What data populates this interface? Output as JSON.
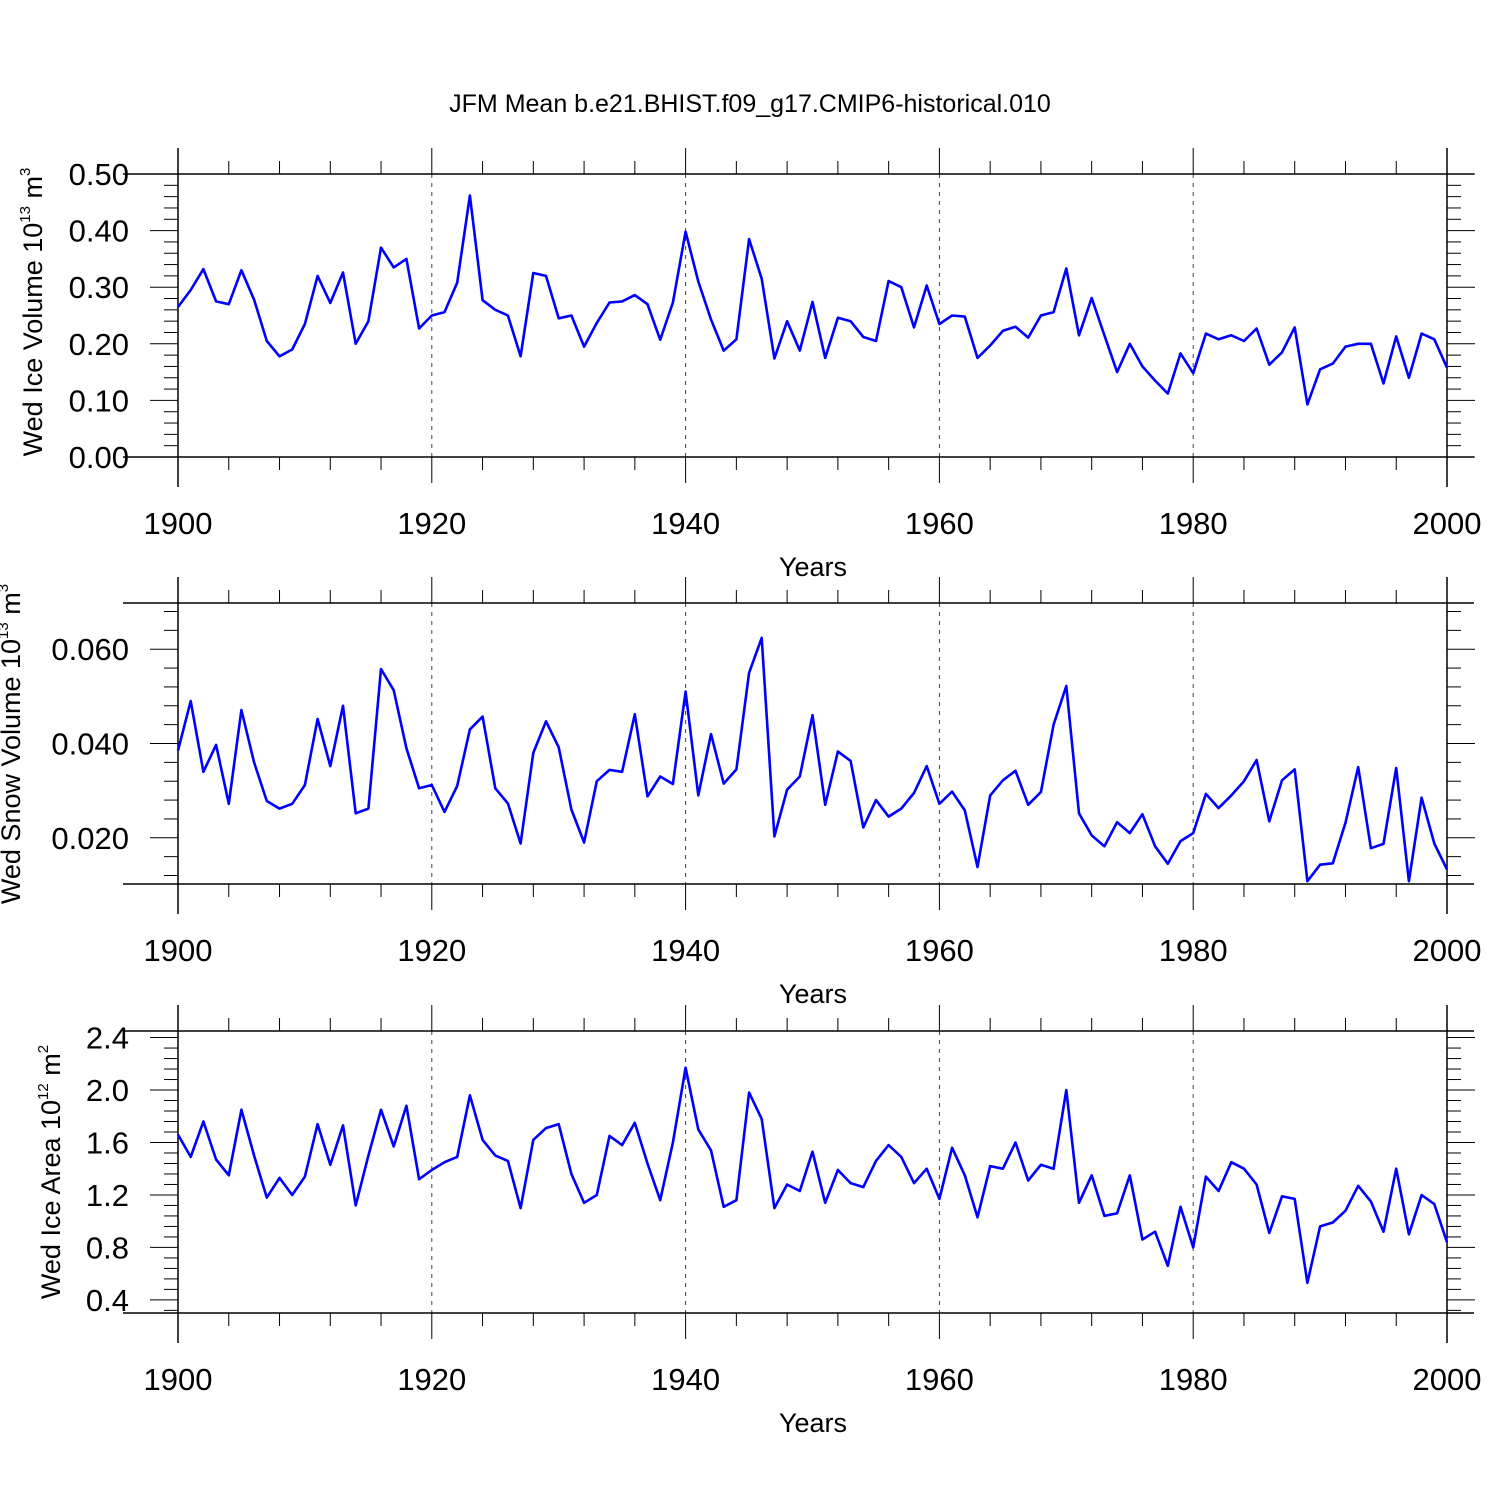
{
  "title": "JFM Mean b.e21.BHIST.f09_g17.CMIP6-historical.010",
  "chart_data": [
    {
      "type": "line",
      "xlabel": "Years",
      "ylabel": "Wed Ice Volume",
      "ylabel_unit_base": "10",
      "ylabel_unit_exp": "13",
      "ylabel_unit_rest": "m",
      "ylabel_unit_rest_exp": "3",
      "xlim": [
        1900,
        2000
      ],
      "ylim": [
        0,
        0.5
      ],
      "xticks": [
        "1900",
        "1920",
        "1940",
        "1960",
        "1980",
        "2000"
      ],
      "yticks": [
        {
          "value": 0.0,
          "label": "0.00"
        },
        {
          "value": 0.1,
          "label": "0.10"
        },
        {
          "value": 0.2,
          "label": "0.20"
        },
        {
          "value": 0.3,
          "label": "0.30"
        },
        {
          "value": 0.4,
          "label": "0.40"
        },
        {
          "value": 0.5,
          "label": "0.50"
        }
      ],
      "grid": "vertical dashed at major x ticks",
      "line_color": "#0000ff",
      "series": [
        {
          "x_start": 1900,
          "values": [
            0.265,
            0.295,
            0.332,
            0.275,
            0.27,
            0.33,
            0.278,
            0.205,
            0.178,
            0.19,
            0.235,
            0.32,
            0.272,
            0.326,
            0.2,
            0.24,
            0.37,
            0.335,
            0.35,
            0.227,
            0.25,
            0.256,
            0.308,
            0.462,
            0.277,
            0.26,
            0.25,
            0.178,
            0.325,
            0.32,
            0.245,
            0.25,
            0.195,
            0.237,
            0.273,
            0.275,
            0.286,
            0.27,
            0.207,
            0.273,
            0.398,
            0.31,
            0.243,
            0.188,
            0.208,
            0.385,
            0.315,
            0.174,
            0.24,
            0.188,
            0.274,
            0.175,
            0.246,
            0.24,
            0.212,
            0.205,
            0.311,
            0.3,
            0.229,
            0.303,
            0.235,
            0.25,
            0.248,
            0.175,
            0.197,
            0.223,
            0.23,
            0.211,
            0.25,
            0.256,
            0.333,
            0.215,
            0.281,
            0.215,
            0.15,
            0.2,
            0.16,
            0.135,
            0.112,
            0.183,
            0.148,
            0.218,
            0.208,
            0.215,
            0.205,
            0.227,
            0.163,
            0.185,
            0.229,
            0.093,
            0.155,
            0.165,
            0.195,
            0.2,
            0.2,
            0.13,
            0.213,
            0.14,
            0.218,
            0.208,
            0.158
          ]
        }
      ]
    },
    {
      "type": "line",
      "xlabel": "Years",
      "ylabel": "Wed Snow Volume",
      "ylabel_unit_base": "10",
      "ylabel_unit_exp": "13",
      "ylabel_unit_rest": "m",
      "ylabel_unit_rest_exp": "3",
      "xlim": [
        1900,
        2000
      ],
      "ylim": [
        0.0102,
        0.0698
      ],
      "xticks": [
        "1900",
        "1920",
        "1940",
        "1960",
        "1980",
        "2000"
      ],
      "yticks": [
        {
          "value": 0.02,
          "label": "0.020"
        },
        {
          "value": 0.04,
          "label": "0.040"
        },
        {
          "value": 0.06,
          "label": "0.060"
        }
      ],
      "grid": "vertical dashed at major x ticks",
      "line_color": "#0000ff",
      "series": [
        {
          "x_start": 1900,
          "values": [
            0.0385,
            0.049,
            0.034,
            0.0397,
            0.0272,
            0.0471,
            0.036,
            0.0278,
            0.0262,
            0.0272,
            0.0312,
            0.0452,
            0.0352,
            0.048,
            0.0252,
            0.0262,
            0.0558,
            0.0513,
            0.039,
            0.0305,
            0.0312,
            0.0255,
            0.031,
            0.043,
            0.0457,
            0.0305,
            0.0273,
            0.0188,
            0.038,
            0.0447,
            0.0392,
            0.026,
            0.019,
            0.032,
            0.0344,
            0.034,
            0.0462,
            0.0288,
            0.033,
            0.0314,
            0.051,
            0.029,
            0.042,
            0.0315,
            0.0345,
            0.055,
            0.0624,
            0.0203,
            0.0302,
            0.033,
            0.046,
            0.027,
            0.0383,
            0.0363,
            0.0222,
            0.028,
            0.0245,
            0.0262,
            0.0295,
            0.0352,
            0.0272,
            0.0298,
            0.0258,
            0.0138,
            0.029,
            0.0322,
            0.0342,
            0.027,
            0.0297,
            0.044,
            0.0522,
            0.0252,
            0.0205,
            0.0182,
            0.0233,
            0.021,
            0.025,
            0.0182,
            0.0145,
            0.0193,
            0.021,
            0.0293,
            0.0263,
            0.029,
            0.032,
            0.0365,
            0.0235,
            0.0322,
            0.0345,
            0.0108,
            0.0143,
            0.0146,
            0.0232,
            0.035,
            0.0178,
            0.0187,
            0.0348,
            0.0108,
            0.0285,
            0.0188,
            0.0133
          ]
        }
      ]
    },
    {
      "type": "line",
      "xlabel": "Years",
      "ylabel": "Wed Ice Area",
      "ylabel_unit_base": "10",
      "ylabel_unit_exp": "12",
      "ylabel_unit_rest": "m",
      "ylabel_unit_rest_exp": "2",
      "xlim": [
        1900,
        2000
      ],
      "ylim": [
        0.3,
        2.45
      ],
      "xticks": [
        "1900",
        "1920",
        "1940",
        "1960",
        "1980",
        "2000"
      ],
      "yticks": [
        {
          "value": 0.4,
          "label": "0.4"
        },
        {
          "value": 0.8,
          "label": "0.8"
        },
        {
          "value": 1.2,
          "label": "1.2"
        },
        {
          "value": 1.6,
          "label": "1.6"
        },
        {
          "value": 2.0,
          "label": "2.0"
        },
        {
          "value": 2.4,
          "label": "2.4"
        }
      ],
      "grid": "vertical dashed at major x ticks",
      "line_color": "#0000ff",
      "series": [
        {
          "x_start": 1900,
          "values": [
            1.66,
            1.49,
            1.76,
            1.47,
            1.35,
            1.85,
            1.5,
            1.18,
            1.33,
            1.2,
            1.34,
            1.74,
            1.43,
            1.73,
            1.12,
            1.5,
            1.85,
            1.57,
            1.88,
            1.32,
            1.39,
            1.45,
            1.49,
            1.96,
            1.62,
            1.5,
            1.46,
            1.1,
            1.62,
            1.71,
            1.74,
            1.36,
            1.14,
            1.2,
            1.65,
            1.58,
            1.75,
            1.44,
            1.16,
            1.6,
            2.17,
            1.7,
            1.54,
            1.11,
            1.16,
            1.98,
            1.78,
            1.1,
            1.28,
            1.23,
            1.53,
            1.14,
            1.39,
            1.29,
            1.26,
            1.46,
            1.58,
            1.49,
            1.29,
            1.4,
            1.17,
            1.56,
            1.35,
            1.03,
            1.42,
            1.4,
            1.6,
            1.31,
            1.43,
            1.4,
            2.0,
            1.14,
            1.35,
            1.04,
            1.06,
            1.35,
            0.86,
            0.92,
            0.66,
            1.11,
            0.8,
            1.34,
            1.23,
            1.45,
            1.4,
            1.28,
            0.91,
            1.19,
            1.17,
            0.53,
            0.96,
            0.99,
            1.08,
            1.27,
            1.15,
            0.92,
            1.4,
            0.9,
            1.2,
            1.13,
            0.84
          ]
        }
      ]
    }
  ]
}
